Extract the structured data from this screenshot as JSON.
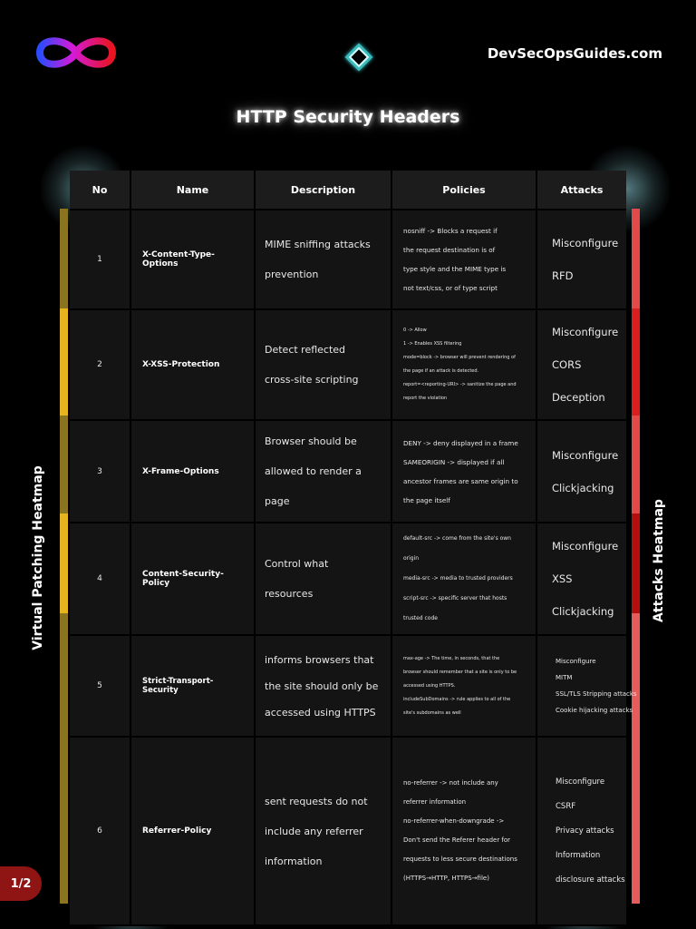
{
  "header": {
    "site": "DevSecOpsGuides.com",
    "title": "HTTP Security Headers"
  },
  "sidebars": {
    "left": "Virtual Patching Heatmap",
    "right": "Attacks Heatmap"
  },
  "page_indicator": "1/2",
  "colors": {
    "heat_left": [
      "#8a7420",
      "#e6b41e",
      "#8a7420",
      "#e6b41e",
      "#8a7420",
      "#8a7420"
    ],
    "heat_right": [
      "#e24a4a",
      "#d81e1e",
      "#e24a4a",
      "#b30f0f",
      "#e45c5c",
      "#e45c5c"
    ]
  },
  "table": {
    "columns": [
      "No",
      "Name",
      "Description",
      "Policies",
      "Attacks"
    ],
    "rows": [
      {
        "no": "1",
        "name": "X-Content-Type-Options",
        "description": [
          "MIME sniffing attacks",
          "prevention"
        ],
        "policies": [
          "nosniff -> Blocks a request if",
          "the request destination is of",
          "type style and the MIME type is",
          "not text/css, or of type script"
        ],
        "attacks": [
          "Misconfigure",
          "RFD"
        ]
      },
      {
        "no": "2",
        "name": "X-XSS-Protection",
        "description": [
          "Detect reflected",
          "cross-site scripting"
        ],
        "policies": [
          "0 -> Allow",
          "1 -> Enables XSS filtering",
          "mode=block -> browser will prevent rendering of",
          "the page if an attack is detected.",
          "report=<reporting-URI> -> sanitize the page and",
          "report the violation"
        ],
        "attacks": [
          "Misconfigure",
          "CORS",
          "Deception"
        ]
      },
      {
        "no": "3",
        "name": "X-Frame-Options",
        "description": [
          "Browser should be",
          "allowed to render a page"
        ],
        "policies": [
          "DENY -> deny displayed in a frame",
          "SAMEORIGIN -> displayed if all",
          "ancestor frames are same origin to",
          "the page itself"
        ],
        "attacks": [
          "Misconfigure",
          "Clickjacking"
        ]
      },
      {
        "no": "4",
        "name": "Content-Security-Policy",
        "description": [
          "Control what",
          "resources"
        ],
        "policies": [
          "default-src -> come from the site's own",
          "origin",
          "media-src -> media to trusted providers",
          "script-src -> specific server that hosts",
          "trusted code"
        ],
        "attacks": [
          "Misconfigure",
          "XSS",
          "Clickjacking"
        ]
      },
      {
        "no": "5",
        "name": "Strict-Transport-Security",
        "description": [
          "informs browsers that",
          "the site should only be",
          "accessed using HTTPS"
        ],
        "policies": [
          "max-age -> The time, in seconds, that the",
          "browser should remember that a site is only to be",
          "accessed using HTTPS.",
          "includeSubDomains -> rule applies to all of the",
          "site's subdomains as well"
        ],
        "attacks": [
          "Misconfigure",
          "MITM",
          "SSL/TLS Stripping attacks",
          "Cookie hijacking attacks"
        ]
      },
      {
        "no": "6",
        "name": "Referrer-Policy",
        "description": [
          "sent requests do not",
          "include any referrer",
          "information"
        ],
        "policies": [
          "no-referrer -> not include any",
          "referrer information",
          "no-referrer-when-downgrade ->",
          "Don't send the Referer header for",
          "requests to less secure destinations",
          "(HTTPS→HTTP, HTTPS→file)"
        ],
        "attacks": [
          "Misconfigure",
          "CSRF",
          "Privacy attacks",
          "Information",
          "disclosure attacks"
        ]
      }
    ]
  }
}
